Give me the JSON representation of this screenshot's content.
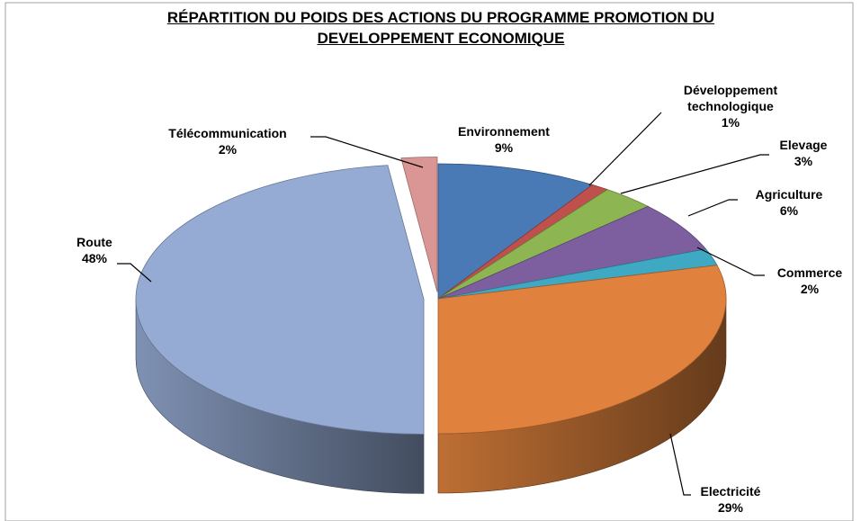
{
  "chart_data": {
    "type": "pie",
    "title": "RÉPARTITION DU POIDS DES ACTIONS DU PROGRAMME PROMOTION DU DEVELOPPEMENT ECONOMIQUE",
    "categories": [
      "Environnement",
      "Développement technologique",
      "Elevage",
      "Agriculture",
      "Commerce",
      "Electricité",
      "Route",
      "Télécommunication"
    ],
    "values": [
      9,
      1,
      3,
      6,
      2,
      29,
      48,
      2
    ],
    "value_labels": [
      "9%",
      "1%",
      "3%",
      "6%",
      "2%",
      "29%",
      "48%",
      "2%"
    ],
    "colors": [
      "#4a7ab5",
      "#c0504d",
      "#8db552",
      "#7d5fa0",
      "#3fa8c2",
      "#e0823d",
      "#95abd3",
      "#d99694"
    ]
  }
}
